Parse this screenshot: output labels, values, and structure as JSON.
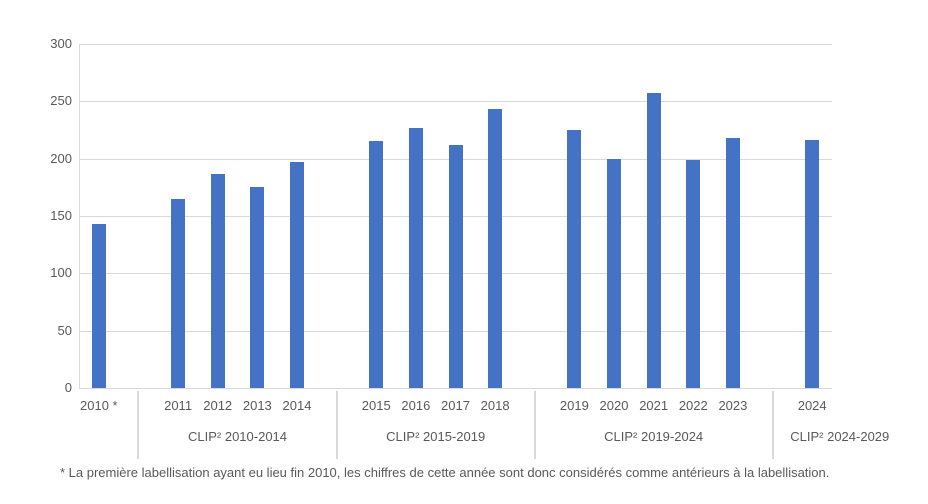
{
  "chart_data": {
    "type": "bar",
    "title": "",
    "xlabel": "",
    "ylabel": "",
    "ylim": [
      0,
      300
    ],
    "yticks": [
      0,
      50,
      100,
      150,
      200,
      250,
      300
    ],
    "grid": true,
    "legend": null,
    "bar_color": "#4472C4",
    "categories": [
      "2010 *",
      "2011",
      "2012",
      "2013",
      "2014",
      "2015",
      "2016",
      "2017",
      "2018",
      "2019",
      "2020",
      "2021",
      "2022",
      "2023",
      "2024"
    ],
    "values": [
      143,
      165,
      187,
      175,
      197,
      215,
      227,
      212,
      243,
      225,
      200,
      257,
      199,
      218,
      216
    ],
    "groups": [
      {
        "label": "",
        "years": [
          "2010 *"
        ],
        "values": [
          143
        ]
      },
      {
        "label": "CLIP² 2010-2014",
        "years": [
          "2011",
          "2012",
          "2013",
          "2014"
        ],
        "values": [
          165,
          187,
          175,
          197
        ]
      },
      {
        "label": "CLIP² 2015-2019",
        "years": [
          "2015",
          "2016",
          "2017",
          "2018"
        ],
        "values": [
          215,
          227,
          212,
          243
        ]
      },
      {
        "label": "CLIP² 2019-2024",
        "years": [
          "2019",
          "2020",
          "2021",
          "2022",
          "2023"
        ],
        "values": [
          225,
          200,
          257,
          199,
          218
        ]
      },
      {
        "label": "CLIP² 2024-2029",
        "years": [
          "2024"
        ],
        "values": [
          216
        ]
      }
    ]
  },
  "footnote": "* La première labellisation ayant eu lieu fin 2010, les chiffres de cette année sont donc considérés comme antérieurs à la labellisation.",
  "colors": {
    "bar": "#4472C4",
    "grid": "#D9D9D9",
    "axis_line": "#D9D9D9",
    "separator": "#D9D9D9",
    "tick_text": "#595959",
    "footnote_text": "#595959"
  }
}
